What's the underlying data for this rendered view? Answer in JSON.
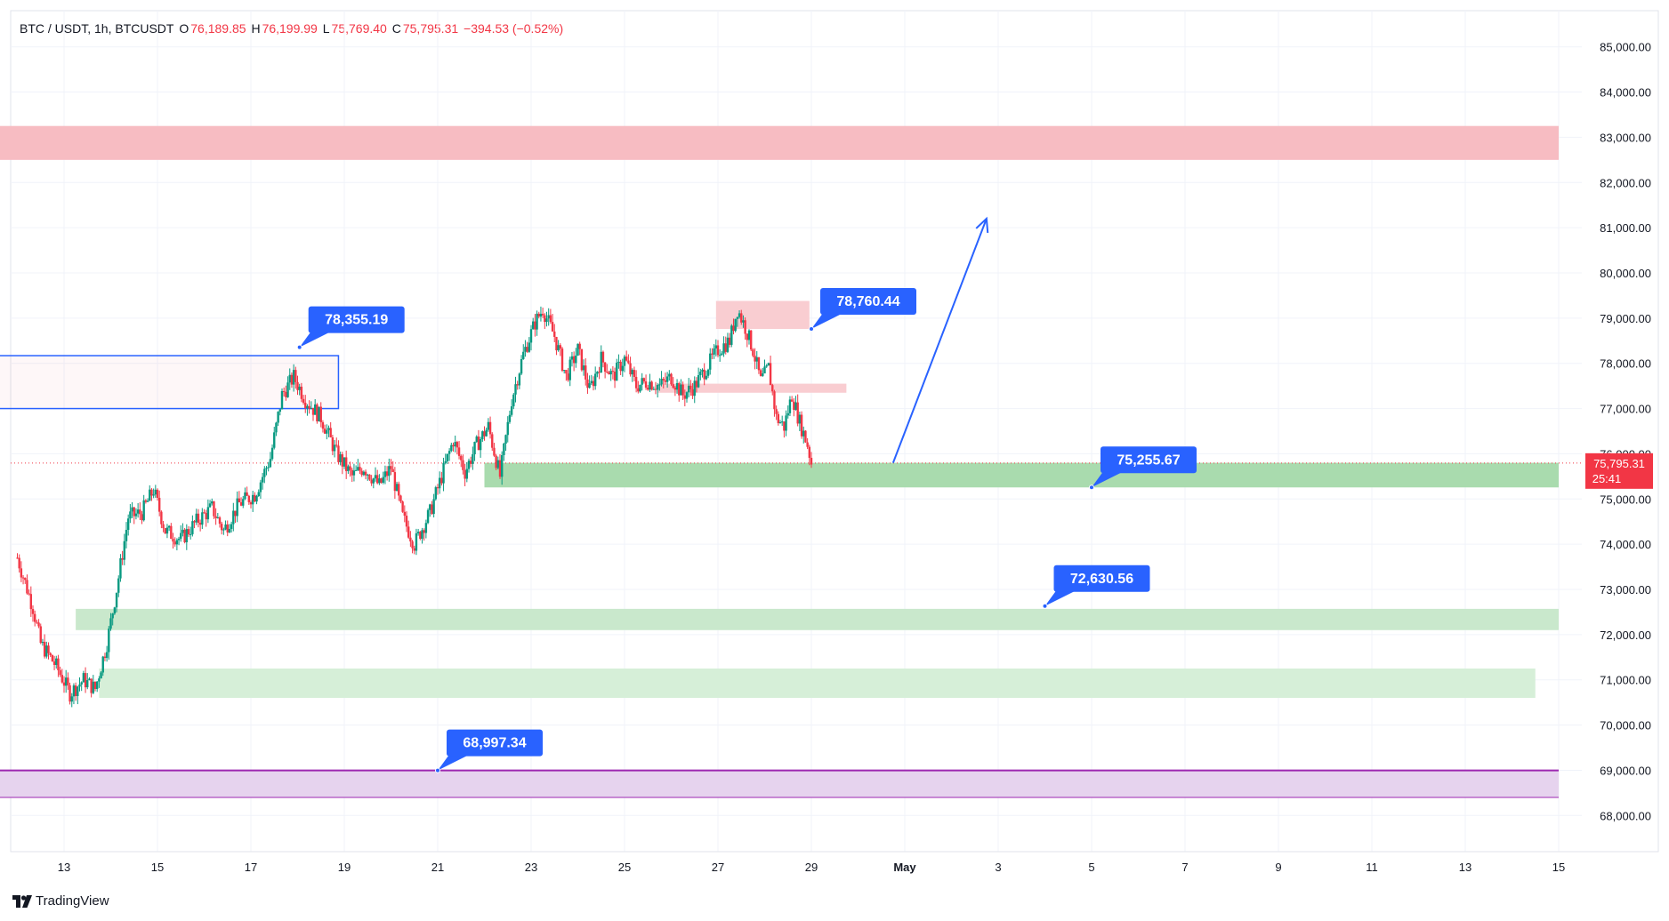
{
  "header": {
    "symbol": "BTC / USDT, 1h, BTCUSDT",
    "open_label": "O",
    "open": "76,189.85",
    "high_label": "H",
    "high": "76,199.99",
    "low_label": "L",
    "low": "75,769.40",
    "close_label": "C",
    "close": "75,795.31",
    "change": "−394.53 (−0.52%)"
  },
  "brand": {
    "name": "TradingView",
    "icon": "tradingview-logo-icon"
  },
  "chart_data": {
    "type": "candlestick",
    "symbol": "BTC / USDT",
    "interval": "1h",
    "ylim": [
      67200,
      85800
    ],
    "y_ticks": [
      "85,000.00",
      "84,000.00",
      "83,000.00",
      "82,000.00",
      "81,000.00",
      "80,000.00",
      "79,000.00",
      "78,000.00",
      "77,000.00",
      "76,000.00",
      "75,000.00",
      "74,000.00",
      "73,000.00",
      "72,000.00",
      "71,000.00",
      "70,000.00",
      "69,000.00",
      "68,000.00"
    ],
    "x_ticks": [
      "13",
      "15",
      "17",
      "19",
      "21",
      "23",
      "25",
      "27",
      "29",
      "May",
      "3",
      "5",
      "7",
      "9",
      "11",
      "13",
      "15"
    ],
    "current_price": {
      "label": "75,795.31",
      "countdown": "25:41",
      "value": 75795.31
    },
    "price_path": [
      [
        "Apr 12 00:00",
        73700
      ],
      [
        "Apr 12 08:00",
        72600
      ],
      [
        "Apr 12 12:00",
        71800
      ],
      [
        "Apr 12 20:00",
        71300
      ],
      [
        "Apr 13 03:00",
        70700
      ],
      [
        "Apr 13 10:00",
        71000
      ],
      [
        "Apr 13 16:00",
        70800
      ],
      [
        "Apr 13 22:00",
        71800
      ],
      [
        "Apr 14 03:00",
        73000
      ],
      [
        "Apr 14 09:00",
        74600
      ],
      [
        "Apr 14 16:00",
        74700
      ],
      [
        "Apr 14 22:00",
        75200
      ],
      [
        "Apr 15 04:00",
        74300
      ],
      [
        "Apr 15 12:00",
        74100
      ],
      [
        "Apr 15 20:00",
        74500
      ],
      [
        "Apr 16 04:00",
        74800
      ],
      [
        "Apr 16 10:00",
        74300
      ],
      [
        "Apr 16 18:00",
        74900
      ],
      [
        "Apr 17 02:00",
        75100
      ],
      [
        "Apr 17 10:00",
        75900
      ],
      [
        "Apr 17 16:00",
        77300
      ],
      [
        "Apr 17 22:00",
        77700
      ],
      [
        "Apr 18 04:00",
        77200
      ],
      [
        "Apr 18 12:00",
        76800
      ],
      [
        "Apr 18 20:00",
        76000
      ],
      [
        "Apr 19 04:00",
        75500
      ],
      [
        "Apr 19 10:00",
        75700
      ],
      [
        "Apr 19 18:00",
        75300
      ],
      [
        "Apr 20 00:00",
        75700
      ],
      [
        "Apr 20 06:00",
        74600
      ],
      [
        "Apr 20 12:00",
        74000
      ],
      [
        "Apr 20 20:00",
        74700
      ],
      [
        "Apr 21 02:00",
        75500
      ],
      [
        "Apr 21 08:00",
        76300
      ],
      [
        "Apr 21 14:00",
        75600
      ],
      [
        "Apr 21 20:00",
        76200
      ],
      [
        "Apr 22 02:00",
        76600
      ],
      [
        "Apr 22 08:00",
        75500
      ],
      [
        "Apr 22 14:00",
        77200
      ],
      [
        "Apr 22 20:00",
        78200
      ],
      [
        "Apr 23 02:00",
        78900
      ],
      [
        "Apr 23 06:00",
        79200
      ],
      [
        "Apr 23 12:00",
        78600
      ],
      [
        "Apr 23 18:00",
        77700
      ],
      [
        "Apr 24 00:00",
        78300
      ],
      [
        "Apr 24 06:00",
        77400
      ],
      [
        "Apr 24 12:00",
        78100
      ],
      [
        "Apr 24 18:00",
        77700
      ],
      [
        "Apr 25 00:00",
        78100
      ],
      [
        "Apr 25 06:00",
        77500
      ],
      [
        "Apr 25 12:00",
        77600
      ],
      [
        "Apr 25 18:00",
        77500
      ],
      [
        "Apr 26 00:00",
        77700
      ],
      [
        "Apr 26 06:00",
        77300
      ],
      [
        "Apr 26 12:00",
        77500
      ],
      [
        "Apr 26 18:00",
        77900
      ],
      [
        "Apr 27 00:00",
        78300
      ],
      [
        "Apr 27 06:00",
        78500
      ],
      [
        "Apr 27 10:00",
        79200
      ],
      [
        "Apr 27 14:00",
        78800
      ],
      [
        "Apr 27 18:00",
        78300
      ],
      [
        "Apr 27 22:00",
        77600
      ],
      [
        "Apr 28 02:00",
        77900
      ],
      [
        "Apr 28 06:00",
        76800
      ],
      [
        "Apr 28 10:00",
        76600
      ],
      [
        "Apr 28 14:00",
        77300
      ],
      [
        "Apr 28 18:00",
        76700
      ],
      [
        "Apr 28 22:00",
        76200
      ],
      [
        "Apr 29 00:00",
        75795
      ]
    ],
    "zones": [
      {
        "kind": "resistance",
        "low": 82500,
        "high": 83250,
        "from": "Apr 11",
        "to": "May 15",
        "color": "#f7bcc2"
      },
      {
        "kind": "resistance",
        "low": 78760,
        "high": 79380,
        "from": "Apr 26 23:00",
        "to": "Apr 28 23:00",
        "color": "#f9cdd1"
      },
      {
        "kind": "resistance",
        "low": 77350,
        "high": 77550,
        "from": "Apr 25 17:00",
        "to": "Apr 29 18:00",
        "color": "#f9cdd1"
      },
      {
        "kind": "box",
        "low": 77000,
        "high": 78170,
        "from": "Apr 11",
        "to": "Apr 18 21:00",
        "color": "#2962ff"
      },
      {
        "kind": "support",
        "low": 75256,
        "high": 75800,
        "from": "Apr 22",
        "to": "May 15",
        "color": "#a9dbae"
      },
      {
        "kind": "support",
        "low": 72100,
        "high": 72570,
        "from": "Apr 13 06:00",
        "to": "May 15",
        "color": "#c9e8cc"
      },
      {
        "kind": "support",
        "low": 70600,
        "high": 71250,
        "from": "Apr 13 18:00",
        "to": "May 14 12:00",
        "color": "#d6efd8"
      },
      {
        "kind": "support",
        "low": 68400,
        "high": 68997,
        "from": "Apr 11",
        "to": "May 15",
        "color": "#e6d3ee"
      }
    ],
    "annotations": [
      {
        "text": "78,355.19",
        "value": 78355.19,
        "at": "Apr 18 01:00"
      },
      {
        "text": "78,760.44",
        "value": 78760.44,
        "at": "Apr 29 00:00"
      },
      {
        "text": "75,255.67",
        "value": 75255.67,
        "at": "May 5 00:00"
      },
      {
        "text": "72,630.56",
        "value": 72630.56,
        "at": "May 4 00:00"
      },
      {
        "text": "68,997.34",
        "value": 68997.34,
        "at": "Apr 21 00:00"
      }
    ],
    "projection_arrow": {
      "from": [
        "Apr 30 18:00",
        75800
      ],
      "to": [
        "May 2 18:00",
        81200
      ],
      "color": "#2962ff"
    },
    "colors": {
      "up": "#089981",
      "down": "#f23645",
      "label_bg": "#2962ff",
      "support_line": "#9c27b0",
      "grid": "#f0f3fa"
    }
  }
}
